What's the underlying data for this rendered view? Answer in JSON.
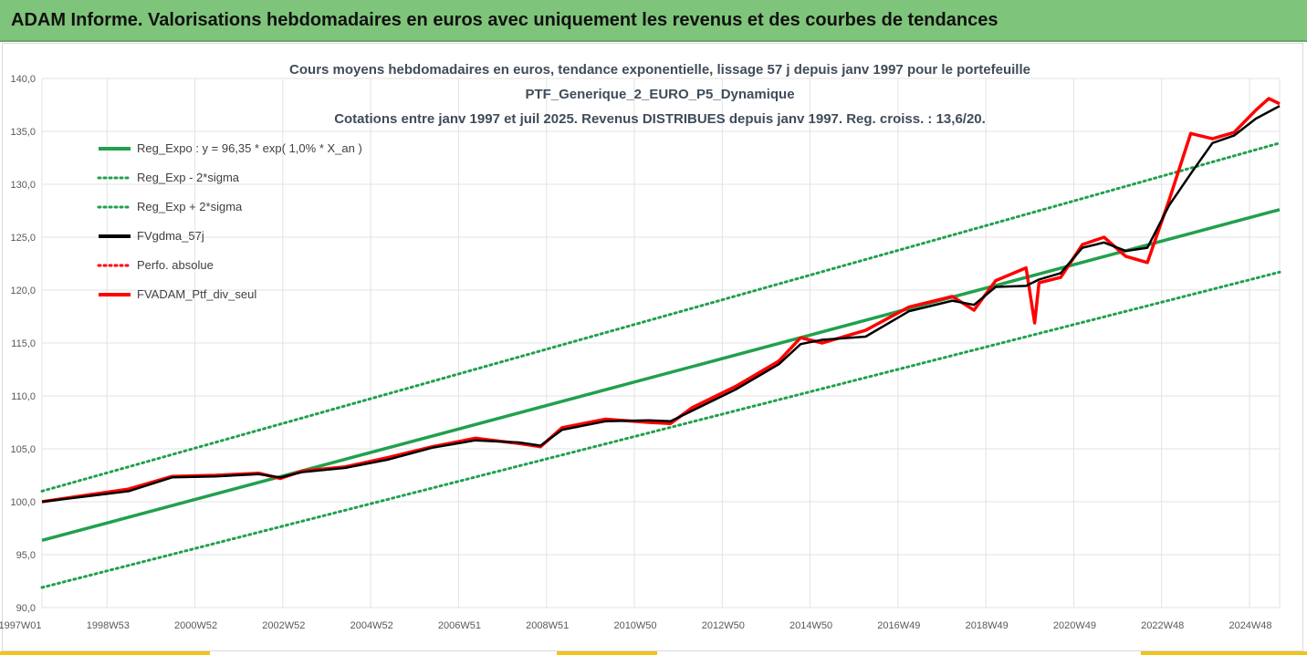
{
  "window": {
    "title": "ADAM Informe. Valorisations hebdomadaires en euros avec uniquement les revenus et des courbes de tendances"
  },
  "colors": {
    "banner": "#7ec47a",
    "trend": "#21a04d",
    "smoothed": "#000000",
    "perf": "#ff0000",
    "accent": "#f0c419"
  },
  "chart_data": {
    "type": "line",
    "title": [
      "Cours moyens hebdomadaires  en euros, tendance exponentielle, lissage 57 j depuis janv 1997 pour le portefeuille",
      "PTF_Generique_2_EURO_P5_Dynamique",
      "Cotations  entre janv 1997 et juil 2025. Revenus DISTRIBUES depuis janv 1997. Reg. croiss. : 13,6/20."
    ],
    "xlabel": "",
    "ylabel": "",
    "ylim": [
      90,
      140
    ],
    "y_ticks": [
      "90,0",
      "95,0",
      "100,0",
      "105,0",
      "110,0",
      "115,0",
      "120,0",
      "125,0",
      "130,0",
      "135,0",
      "140,0"
    ],
    "x_ticks": [
      "1997W01",
      "1998W53",
      "2000W52",
      "2002W52",
      "2004W52",
      "2006W51",
      "2008W51",
      "2010W50",
      "2012W50",
      "2014W50",
      "2016W49",
      "2018W49",
      "2020W49",
      "2022W48",
      "2024W48"
    ],
    "x_range": [
      1997.0,
      2025.55
    ],
    "grid": true,
    "legend_position": "top-left",
    "legend": [
      "Reg_Expo : y = 96,35 * exp( 1,0% *  X_an )",
      "Reg_Exp - 2*sigma",
      "Reg_Exp + 2*sigma",
      "FVgdma_57j",
      "Perfo. absolue",
      "FVADAM_Ptf_div_seul"
    ],
    "series": [
      {
        "name": "Reg_Expo : y = 96,35 * exp( 1,0% *  X_an )",
        "style": "solid",
        "color": "#21a04d",
        "x": [
          1997.0,
          2025.55
        ],
        "y": [
          96.35,
          127.6
        ]
      },
      {
        "name": "Reg_Exp - 2*sigma",
        "style": "dotted",
        "color": "#21a04d",
        "x": [
          1997.0,
          2025.55
        ],
        "y": [
          91.9,
          121.7
        ]
      },
      {
        "name": "Reg_Exp + 2*sigma",
        "style": "dotted",
        "color": "#21a04d",
        "x": [
          1997.0,
          2025.55
        ],
        "y": [
          101.0,
          133.9
        ]
      },
      {
        "name": "FVgdma_57j",
        "style": "solid",
        "color": "#000000",
        "x": [
          1997.0,
          1998.0,
          1999.0,
          2000.0,
          2001.0,
          2002.0,
          2002.5,
          2003.0,
          2004.0,
          2005.0,
          2006.0,
          2007.0,
          2008.0,
          2008.5,
          2009.0,
          2010.0,
          2011.0,
          2011.5,
          2012.0,
          2013.0,
          2014.0,
          2014.5,
          2015.0,
          2016.0,
          2017.0,
          2018.0,
          2018.5,
          2019.0,
          2019.7,
          2020.0,
          2020.5,
          2021.0,
          2021.5,
          2022.0,
          2022.5,
          2023.0,
          2023.5,
          2024.0,
          2024.5,
          2025.0,
          2025.55
        ],
        "y": [
          100.0,
          100.5,
          101.0,
          102.3,
          102.4,
          102.6,
          102.3,
          102.8,
          103.2,
          104.0,
          105.1,
          105.8,
          105.6,
          105.3,
          106.8,
          107.6,
          107.7,
          107.6,
          108.6,
          110.6,
          113.0,
          114.9,
          115.3,
          115.6,
          118.0,
          119.0,
          118.6,
          120.3,
          120.4,
          121.0,
          121.6,
          124.0,
          124.5,
          123.7,
          124.0,
          128.0,
          131.0,
          133.9,
          134.6,
          136.2,
          137.4
        ]
      },
      {
        "name": "FVADAM_Ptf_div_seul",
        "style": "solid",
        "color": "#ff0000",
        "x": [
          1997.0,
          1998.0,
          1999.0,
          2000.0,
          2001.0,
          2002.0,
          2002.5,
          2003.0,
          2004.0,
          2005.0,
          2006.0,
          2007.0,
          2008.0,
          2008.5,
          2009.0,
          2010.0,
          2011.0,
          2011.5,
          2012.0,
          2013.0,
          2014.0,
          2014.5,
          2015.0,
          2016.0,
          2017.0,
          2018.0,
          2018.5,
          2019.0,
          2019.7,
          2019.9,
          2020.0,
          2020.5,
          2021.0,
          2021.5,
          2022.0,
          2022.5,
          2023.0,
          2023.5,
          2024.0,
          2024.5,
          2025.0,
          2025.3,
          2025.55
        ],
        "y": [
          100.0,
          100.6,
          101.2,
          102.4,
          102.5,
          102.7,
          102.2,
          102.9,
          103.3,
          104.2,
          105.2,
          106.0,
          105.5,
          105.2,
          107.0,
          107.8,
          107.5,
          107.4,
          108.9,
          110.9,
          113.3,
          115.5,
          115.0,
          116.2,
          118.4,
          119.4,
          118.1,
          120.9,
          122.1,
          116.9,
          120.7,
          121.2,
          124.3,
          125.0,
          123.2,
          122.6,
          128.5,
          134.8,
          134.3,
          134.9,
          137.0,
          138.1,
          137.6
        ]
      }
    ]
  }
}
